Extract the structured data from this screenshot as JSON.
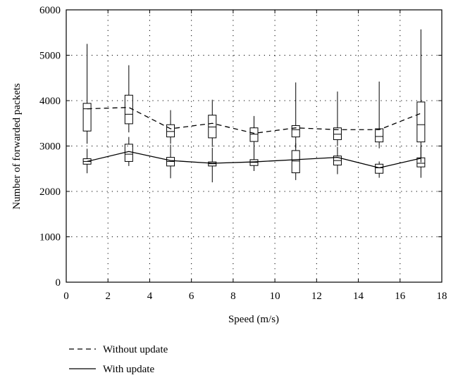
{
  "chart_data": {
    "type": "line",
    "title": "",
    "xlabel": "Speed (m/s)",
    "ylabel": "Number of forwarded packets",
    "xlim": [
      0,
      18
    ],
    "ylim": [
      0,
      6000
    ],
    "xticks": [
      0,
      2,
      4,
      6,
      8,
      10,
      12,
      14,
      16,
      18
    ],
    "yticks": [
      0,
      1000,
      2000,
      3000,
      4000,
      5000,
      6000
    ],
    "grid": true,
    "legend_position": "below",
    "x": [
      1,
      3,
      5,
      7,
      9,
      11,
      13,
      15,
      17
    ],
    "series": [
      {
        "name": "Without update",
        "line_style": "dashed",
        "color": "#000000",
        "values": [
          3820,
          3850,
          3380,
          3500,
          3280,
          3400,
          3360,
          3360,
          3720
        ],
        "boxes": [
          {
            "whisker_low": 3050,
            "q1": 3330,
            "median": 3820,
            "q3": 3940,
            "whisker_high": 5250
          },
          {
            "whisker_low": 3300,
            "q1": 3490,
            "median": 3700,
            "q3": 4120,
            "whisker_high": 4780
          },
          {
            "whisker_low": 3050,
            "q1": 3200,
            "median": 3320,
            "q3": 3470,
            "whisker_high": 3790
          },
          {
            "whisker_low": 2980,
            "q1": 3180,
            "median": 3420,
            "q3": 3680,
            "whisker_high": 4020
          },
          {
            "whisker_low": 2900,
            "q1": 3100,
            "median": 3260,
            "q3": 3400,
            "whisker_high": 3660
          },
          {
            "whisker_low": 2960,
            "q1": 3200,
            "median": 3360,
            "q3": 3450,
            "whisker_high": 4400
          },
          {
            "whisker_low": 3000,
            "q1": 3140,
            "median": 3260,
            "q3": 3400,
            "whisker_high": 4200
          },
          {
            "whisker_low": 2950,
            "q1": 3090,
            "median": 3210,
            "q3": 3380,
            "whisker_high": 4420
          },
          {
            "whisker_low": 2640,
            "q1": 3090,
            "median": 3470,
            "q3": 3970,
            "whisker_high": 5570
          }
        ]
      },
      {
        "name": "With update",
        "line_style": "solid",
        "color": "#000000",
        "values": [
          2660,
          2880,
          2680,
          2620,
          2650,
          2700,
          2750,
          2520,
          2730
        ],
        "boxes": [
          {
            "whisker_low": 2400,
            "q1": 2600,
            "median": 2660,
            "q3": 2720,
            "whisker_high": 2940
          },
          {
            "whisker_low": 2560,
            "q1": 2660,
            "median": 2820,
            "q3": 3040,
            "whisker_high": 3200
          },
          {
            "whisker_low": 2290,
            "q1": 2560,
            "median": 2660,
            "q3": 2750,
            "whisker_high": 3030
          },
          {
            "whisker_low": 2200,
            "q1": 2560,
            "median": 2610,
            "q3": 2650,
            "whisker_high": 2960
          },
          {
            "whisker_low": 2450,
            "q1": 2570,
            "median": 2640,
            "q3": 2700,
            "whisker_high": 2940
          },
          {
            "whisker_low": 2250,
            "q1": 2410,
            "median": 2670,
            "q3": 2900,
            "whisker_high": 3060
          },
          {
            "whisker_low": 2380,
            "q1": 2580,
            "median": 2680,
            "q3": 2780,
            "whisker_high": 2980
          },
          {
            "whisker_low": 2300,
            "q1": 2400,
            "median": 2520,
            "q3": 2600,
            "whisker_high": 2660
          },
          {
            "whisker_low": 2300,
            "q1": 2540,
            "median": 2620,
            "q3": 2740,
            "whisker_high": 3000
          }
        ]
      }
    ]
  }
}
